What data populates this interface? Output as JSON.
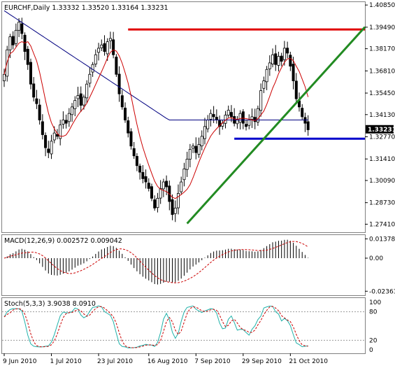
{
  "chart_data": {
    "type": "candlestick",
    "main": {
      "title": "EURCHF,Daily  1.33332 1.33520 1.33164 1.33231",
      "price_ticks": [
        "1.40850",
        "1.39490",
        "1.38170",
        "1.36810",
        "1.35450",
        "1.34130",
        "1.32770",
        "1.31410",
        "1.30090",
        "1.28730",
        "1.27410"
      ],
      "ylim": [
        1.27,
        1.409
      ],
      "current_price": "1.33231",
      "colors": {
        "sma_short": "#cc0000",
        "sma_long": "#000080",
        "resistance": "#e00000",
        "support": "#0000cc",
        "trendline": "#228b22",
        "candles": "#000000"
      },
      "resistance_level": 1.3935,
      "support_level": 1.3265,
      "trendline": {
        "from_index": 57,
        "to_index": 115,
        "from_price": 1.2745,
        "to_price": 1.395
      },
      "candles": []
    },
    "macd": {
      "title": "MACD(12,26,9) 0.002572 0.009042",
      "ticks": [
        "0.013787",
        "0.00",
        "-0.023632"
      ],
      "ylim": [
        -0.0245,
        0.0145
      ]
    },
    "stoch": {
      "title": "Stoch(5,3,3) 3.9038 8.0910",
      "ticks": [
        "100",
        "80",
        "20",
        "0"
      ],
      "levels": [
        80,
        20
      ]
    },
    "x_ticks": [
      {
        "label": "9 Jun 2010",
        "index": 0
      },
      {
        "label": "1 Jul 2010",
        "index": 16
      },
      {
        "label": "23 Jul 2010",
        "index": 32
      },
      {
        "label": "16 Aug 2010",
        "index": 49
      },
      {
        "label": "7 Sep 2010",
        "index": 65
      },
      {
        "label": "29 Sep 2010",
        "index": 81
      },
      {
        "label": "21 Oct 2010",
        "index": 97
      }
    ],
    "closes": [
      1.366,
      1.381,
      1.389,
      1.384,
      1.393,
      1.398,
      1.391,
      1.38,
      1.372,
      1.36,
      1.352,
      1.348,
      1.338,
      1.329,
      1.321,
      1.318,
      1.325,
      1.33,
      1.328,
      1.335,
      1.338,
      1.336,
      1.342,
      1.346,
      1.35,
      1.353,
      1.347,
      1.352,
      1.36,
      1.366,
      1.372,
      1.378,
      1.382,
      1.384,
      1.38,
      1.386,
      1.388,
      1.378,
      1.366,
      1.354,
      1.346,
      1.338,
      1.33,
      1.322,
      1.316,
      1.31,
      1.306,
      1.302,
      1.3,
      1.296,
      1.29,
      1.284,
      1.29,
      1.296,
      1.3,
      1.297,
      1.288,
      1.28,
      1.284,
      1.293,
      1.3,
      1.308,
      1.314,
      1.32,
      1.322,
      1.318,
      1.323,
      1.328,
      1.334,
      1.338,
      1.342,
      1.34,
      1.338,
      1.334,
      1.336,
      1.341,
      1.344,
      1.34,
      1.336,
      1.338,
      1.342,
      1.336,
      1.334,
      1.338,
      1.34,
      1.337,
      1.345,
      1.356,
      1.362,
      1.369,
      1.373,
      1.378,
      1.372,
      1.377,
      1.374,
      1.382,
      1.379,
      1.371,
      1.362,
      1.351,
      1.346,
      1.34,
      1.336,
      1.332
    ],
    "sma_long": [],
    "sma_short": []
  }
}
